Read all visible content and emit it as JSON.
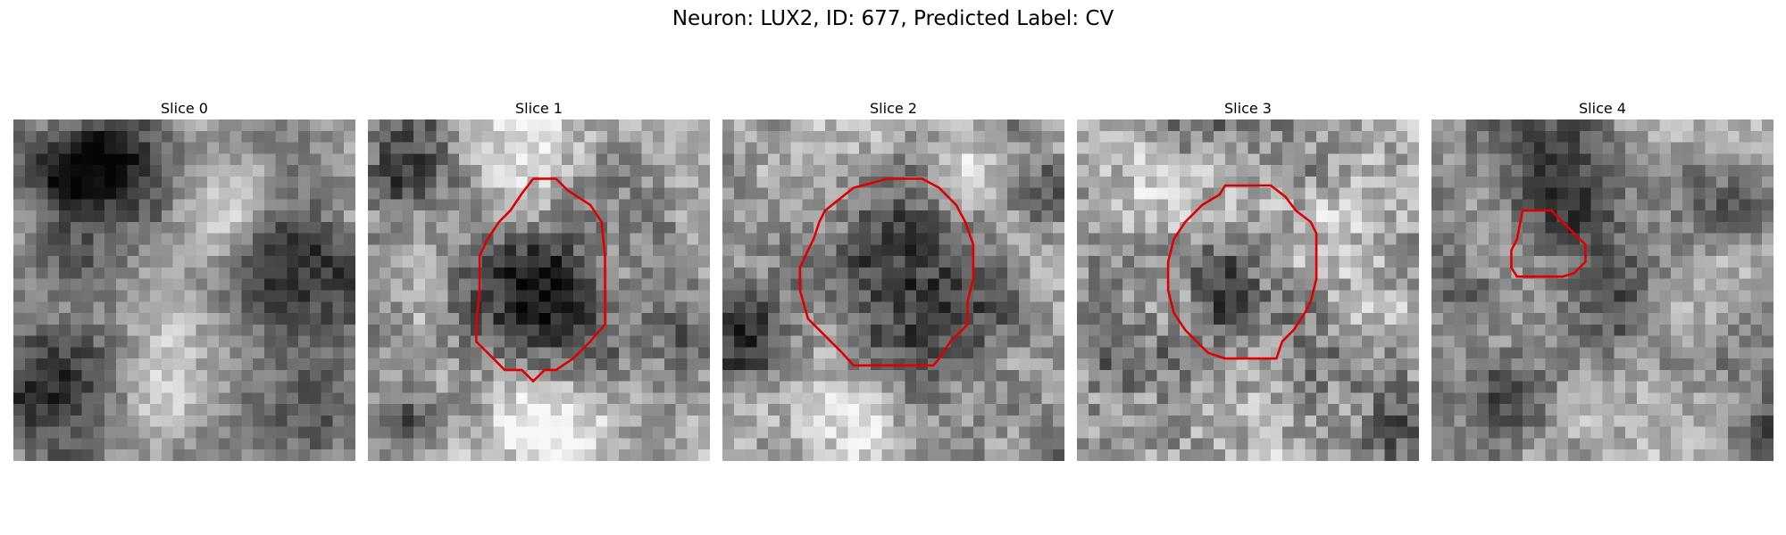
{
  "figure": {
    "title": "Neuron: LUX2, ID: 677, Predicted Label: CV"
  },
  "contour_color": "#e00000",
  "slices": [
    {
      "title": "Slice 0",
      "has_contour": false
    },
    {
      "title": "Slice 1",
      "has_contour": true
    },
    {
      "title": "Slice 2",
      "has_contour": true
    },
    {
      "title": "Slice 3",
      "has_contour": true
    },
    {
      "title": "Slice 4",
      "has_contour": true
    }
  ]
}
